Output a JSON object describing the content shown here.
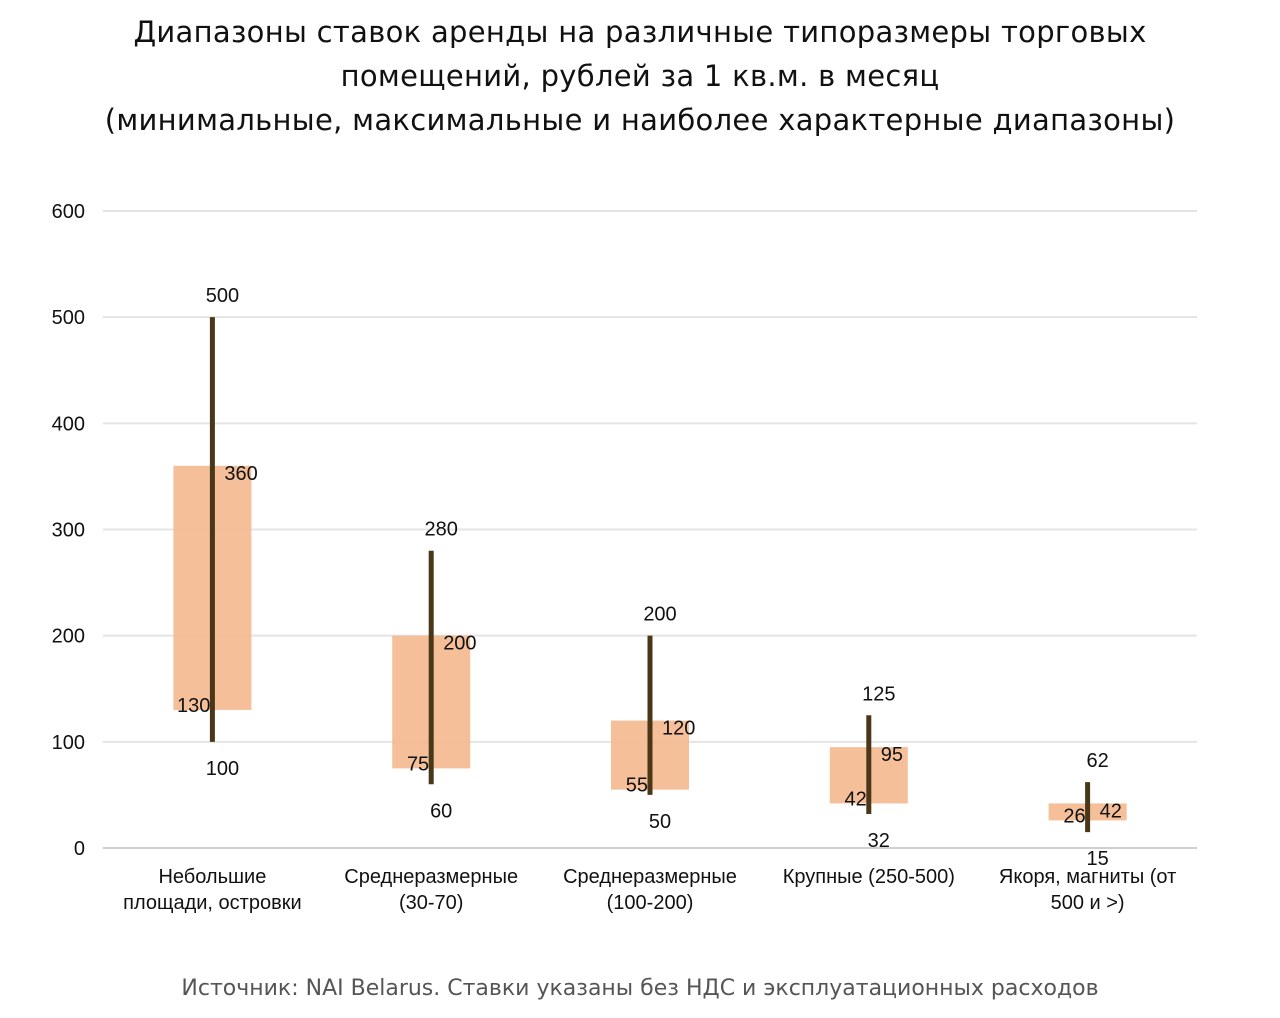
{
  "chart_data": {
    "type": "range-bar",
    "title": [
      "Диапазоны ставок аренды на различные типоразмеры торговых",
      "помещений, рублей за 1 кв.м. в месяц",
      "(минимальные, максимальные и наиболее характерные диапазоны)"
    ],
    "ylim": [
      0,
      600
    ],
    "yticks": [
      "0",
      "100",
      "200",
      "300",
      "400",
      "500",
      "600"
    ],
    "grid": true,
    "categories": [
      [
        "Небольшие",
        "площади, островки"
      ],
      [
        "Среднеразмерные",
        "(30-70)"
      ],
      [
        "Среднеразмерные",
        "(100-200)"
      ],
      [
        "Крупные (250-500)"
      ],
      [
        "Якоря, магниты (от",
        "500 и >)"
      ]
    ],
    "series": [
      {
        "name": "min-max",
        "min": [
          100,
          60,
          50,
          32,
          15
        ],
        "max": [
          500,
          280,
          200,
          125,
          62
        ]
      },
      {
        "name": "typical",
        "low": [
          130,
          75,
          55,
          42,
          26
        ],
        "high": [
          360,
          200,
          120,
          95,
          42
        ]
      }
    ],
    "colors": {
      "range_line": "#4a3718",
      "typical_box": "#f4b88f",
      "grid": "#e4e4e4"
    }
  },
  "source": "Источник: NAI Belarus. Ставки указаны без НДС и эксплуатационных расходов"
}
